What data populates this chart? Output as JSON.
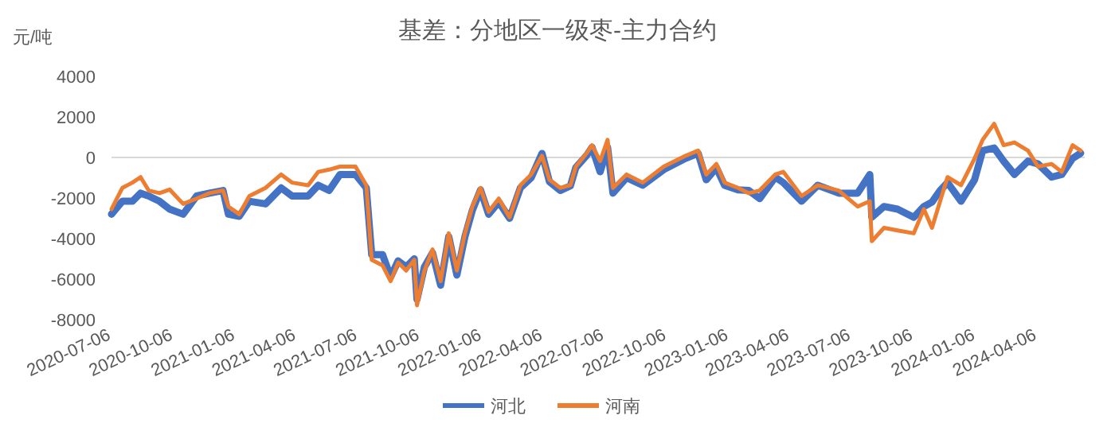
{
  "chart_data": {
    "type": "line",
    "title": "基差：分地区一级枣-主力合约",
    "ylabel": "元/吨",
    "x": [
      "2020-07-06",
      "2020-07-22",
      "2020-08-06",
      "2020-08-18",
      "2020-08-30",
      "2020-09-15",
      "2020-09-30",
      "2020-10-20",
      "2020-11-09",
      "2020-11-28",
      "2020-12-18",
      "2020-12-26",
      "2021-01-11",
      "2021-01-26",
      "2021-02-19",
      "2021-03-14",
      "2021-03-30",
      "2021-04-23",
      "2021-05-08",
      "2021-05-24",
      "2021-06-09",
      "2021-07-02",
      "2021-07-18",
      "2021-07-26",
      "2021-08-11",
      "2021-08-23",
      "2021-09-03",
      "2021-09-15",
      "2021-09-27",
      "2021-10-01",
      "2021-10-12",
      "2021-10-24",
      "2021-11-05",
      "2021-11-17",
      "2021-11-29",
      "2021-12-11",
      "2021-12-22",
      "2022-01-03",
      "2022-01-15",
      "2022-01-30",
      "2022-02-15",
      "2022-03-03",
      "2022-03-19",
      "2022-04-04",
      "2022-04-15",
      "2022-05-01",
      "2022-05-16",
      "2022-05-24",
      "2022-06-09",
      "2022-06-17",
      "2022-06-29",
      "2022-07-10",
      "2022-07-18",
      "2022-08-07",
      "2022-08-31",
      "2022-10-01",
      "2022-11-02",
      "2022-11-21",
      "2022-12-03",
      "2022-12-18",
      "2022-12-30",
      "2023-01-19",
      "2023-02-04",
      "2023-02-20",
      "2023-03-15",
      "2023-03-27",
      "2023-04-23",
      "2023-05-17",
      "2023-06-17",
      "2023-07-15",
      "2023-08-02",
      "2023-08-05",
      "2023-08-23",
      "2023-09-12",
      "2023-10-06",
      "2023-10-21",
      "2023-11-02",
      "2023-11-14",
      "2023-11-25",
      "2023-12-15",
      "2024-01-04",
      "2024-01-16",
      "2024-02-02",
      "2024-02-16",
      "2024-03-03",
      "2024-03-23",
      "2024-04-07",
      "2024-04-27",
      "2024-05-12",
      "2024-05-28",
      "2024-06-09"
    ],
    "series": [
      {
        "name": "河北",
        "color": "#4472c4",
        "values": [
          -2800,
          -2160,
          -2160,
          -1760,
          -1900,
          -2160,
          -2550,
          -2800,
          -1900,
          -1760,
          -1630,
          -2800,
          -2900,
          -2160,
          -2290,
          -1500,
          -1900,
          -1900,
          -1370,
          -1630,
          -840,
          -840,
          -1500,
          -4790,
          -4790,
          -5900,
          -5100,
          -5400,
          -5000,
          -7000,
          -5400,
          -4700,
          -6300,
          -3900,
          -5800,
          -3900,
          -2600,
          -1600,
          -2800,
          -2200,
          -3000,
          -1500,
          -1000,
          200,
          -1200,
          -1630,
          -1400,
          -500,
          100,
          500,
          -710,
          500,
          -1760,
          -1000,
          -1370,
          -600,
          -50,
          200,
          -1100,
          -500,
          -1370,
          -1600,
          -1630,
          -2030,
          -970,
          -1240,
          -2160,
          -1370,
          -1760,
          -1760,
          -840,
          -2950,
          -2420,
          -2550,
          -2950,
          -2420,
          -2200,
          -1630,
          -1240,
          -2160,
          -1100,
          340,
          470,
          -180,
          -840,
          -180,
          -320,
          -970,
          -840,
          -50,
          210
        ]
      },
      {
        "name": "河南",
        "color": "#ed7d31",
        "values": [
          -2550,
          -1500,
          -1240,
          -970,
          -1630,
          -1760,
          -1580,
          -2290,
          -2030,
          -1760,
          -1630,
          -2420,
          -2800,
          -1900,
          -1500,
          -840,
          -1240,
          -1370,
          -710,
          -600,
          -450,
          -450,
          -1370,
          -5050,
          -5320,
          -6100,
          -5180,
          -5580,
          -5050,
          -7290,
          -5580,
          -4530,
          -6100,
          -3740,
          -5580,
          -3740,
          -2420,
          -1500,
          -2680,
          -2030,
          -2950,
          -1370,
          -840,
          80,
          -1100,
          -1500,
          -1370,
          -450,
          210,
          605,
          -180,
          870,
          -1500,
          -840,
          -1240,
          -450,
          80,
          340,
          -840,
          -320,
          -1240,
          -1500,
          -1760,
          -1630,
          -840,
          -710,
          -1900,
          -1370,
          -1630,
          -2420,
          -2160,
          -4130,
          -3470,
          -3600,
          -3740,
          -2550,
          -3470,
          -2160,
          -970,
          -1370,
          -50,
          870,
          1660,
          605,
          740,
          340,
          -450,
          -320,
          -710,
          605,
          340
        ]
      }
    ],
    "xlim": [
      "2020-07-06",
      "2024-06-15"
    ],
    "xticks": [
      "2020-07-06",
      "2020-10-06",
      "2021-01-06",
      "2021-04-06",
      "2021-07-06",
      "2021-10-06",
      "2022-01-06",
      "2022-04-06",
      "2022-07-06",
      "2022-10-06",
      "2023-01-06",
      "2023-04-06",
      "2023-07-06",
      "2023-10-06",
      "2024-01-06",
      "2024-04-06"
    ],
    "ylim": [
      -8000,
      4000
    ],
    "yticks": [
      -8000,
      -6000,
      -4000,
      -2000,
      0,
      2000,
      4000
    ],
    "legend": "bottom"
  }
}
